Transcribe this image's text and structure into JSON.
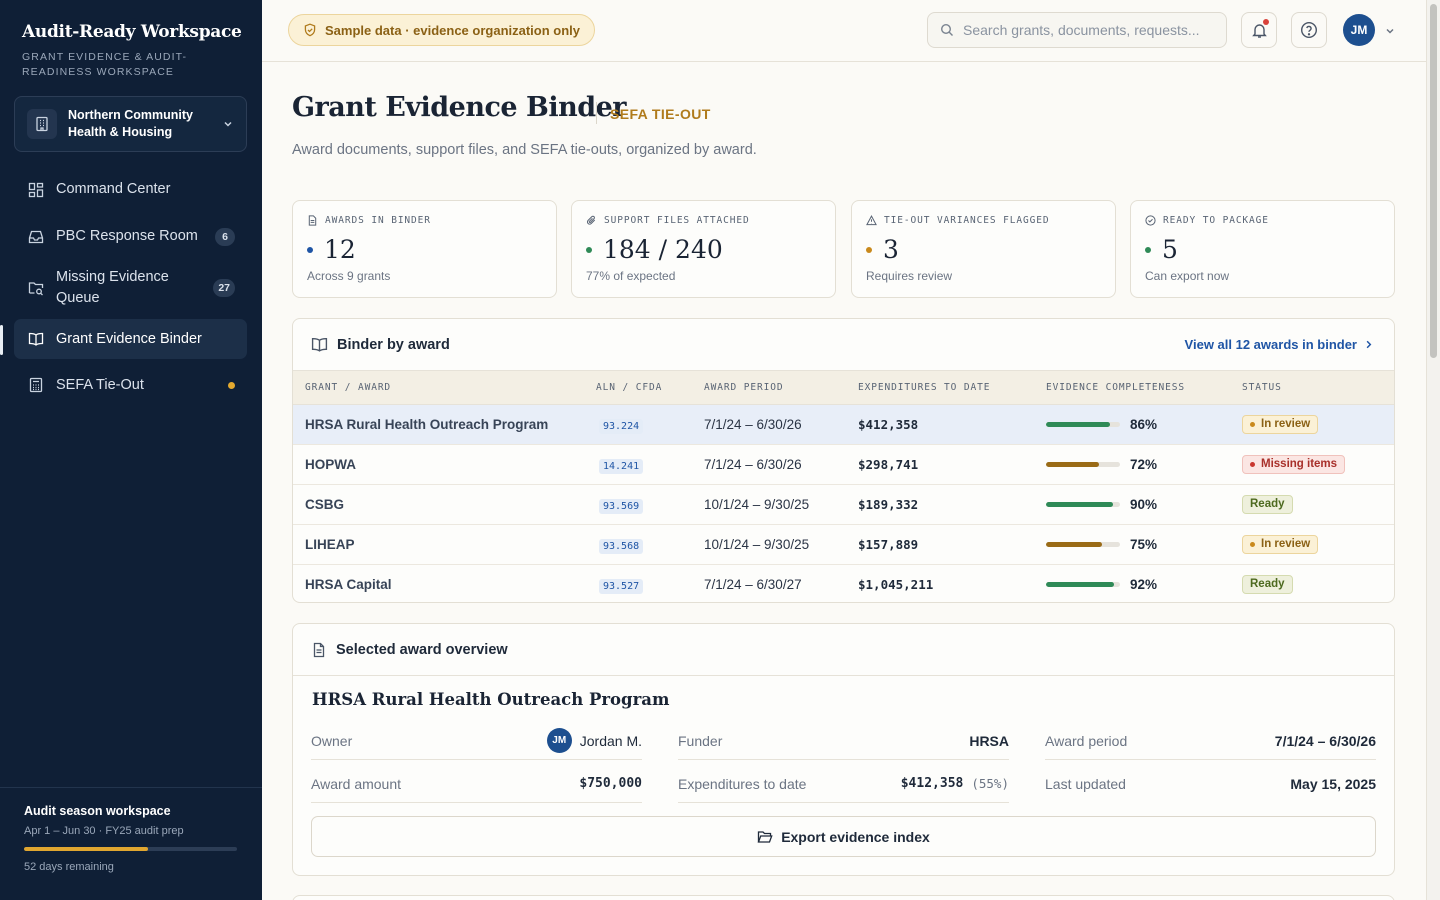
{
  "sidebar": {
    "brand_title": "Audit-Ready Workspace",
    "brand_subtitle": "GRANT EVIDENCE & AUDIT-READINESS WORKSPACE",
    "org_name": "Northern Community Health & Housing",
    "nav": [
      {
        "label": "Command Center",
        "icon": "grid-icon"
      },
      {
        "label": "PBC Response Room",
        "icon": "inbox-icon",
        "badge": "6"
      },
      {
        "label": "Missing Evidence Queue",
        "icon": "folder-search-icon",
        "badge": "27"
      },
      {
        "label": "Grant Evidence Binder",
        "icon": "book-open-icon",
        "active": true
      },
      {
        "label": "SEFA Tie-Out",
        "icon": "calculator-icon",
        "dot_color": "#e3a92f"
      }
    ],
    "season": {
      "title": "Audit season workspace",
      "subtitle": "Apr 1 – Jun 30 · FY25 audit prep",
      "progress": 0.58,
      "days_remaining": "52 days remaining"
    }
  },
  "topbar": {
    "sample_notice": "Sample data · evidence organization only",
    "search_placeholder": "Search grants, documents, requests...",
    "avatar_initials": "JM"
  },
  "page": {
    "title": "Grant Evidence Binder",
    "tag": "SEFA TIE-OUT",
    "description": "Award documents, support files, and SEFA tie-outs, organized by award."
  },
  "kpis": [
    {
      "label": "AWARDS IN BINDER",
      "icon": "file-icon",
      "value": "12",
      "sub": "Across 9 grants",
      "dot_color": "#1f55a5"
    },
    {
      "label": "SUPPORT FILES ATTACHED",
      "icon": "paperclip-icon",
      "value": "184 / 240",
      "sub": "77% of expected",
      "dot_color": "#2f8a57"
    },
    {
      "label": "TIE-OUT VARIANCES FLAGGED",
      "icon": "alert-triangle-icon",
      "value": "3",
      "sub": "Requires review",
      "dot_color": "#c9891c"
    },
    {
      "label": "READY TO PACKAGE",
      "icon": "check-circle-icon",
      "value": "5",
      "sub": "Can export now",
      "dot_color": "#2f8a57"
    }
  ],
  "binder": {
    "title": "Binder by award",
    "view_all": "View all 12 awards in binder",
    "columns": [
      "GRANT / AWARD",
      "ALN / CFDA",
      "AWARD PERIOD",
      "EXPENDITURES TO DATE",
      "EVIDENCE COMPLETENESS",
      "STATUS"
    ],
    "rows": [
      {
        "name": "HRSA Rural Health Outreach Program",
        "aln": "93.224",
        "period": "7/1/24 – 6/30/26",
        "expenditures": "$412,358",
        "completeness": 86,
        "pct": "86%",
        "status": "In review",
        "status_kind": "review",
        "bar_color": "#2f8a57",
        "selected": true
      },
      {
        "name": "HOPWA",
        "aln": "14.241",
        "period": "7/1/24 – 6/30/26",
        "expenditures": "$298,741",
        "completeness": 72,
        "pct": "72%",
        "status": "Missing items",
        "status_kind": "missing",
        "bar_color": "#9a6b16"
      },
      {
        "name": "CSBG",
        "aln": "93.569",
        "period": "10/1/24 – 9/30/25",
        "expenditures": "$189,332",
        "completeness": 90,
        "pct": "90%",
        "status": "Ready",
        "status_kind": "ready",
        "bar_color": "#2f8a57"
      },
      {
        "name": "LIHEAP",
        "aln": "93.568",
        "period": "10/1/24 – 9/30/25",
        "expenditures": "$157,889",
        "completeness": 75,
        "pct": "75%",
        "status": "In review",
        "status_kind": "review",
        "bar_color": "#9a6b16"
      },
      {
        "name": "HRSA Capital",
        "aln": "93.527",
        "period": "7/1/24 – 6/30/27",
        "expenditures": "$1,045,211",
        "completeness": 92,
        "pct": "92%",
        "status": "Ready",
        "status_kind": "ready",
        "bar_color": "#2f8a57"
      }
    ]
  },
  "overview": {
    "title": "Selected award overview",
    "award_name": "HRSA Rural Health Outreach Program",
    "owner_label": "Owner",
    "owner_initials": "JM",
    "owner_name": "Jordan M.",
    "funder_label": "Funder",
    "funder": "HRSA",
    "period_label": "Award period",
    "period": "7/1/24 – 6/30/26",
    "amount_label": "Award amount",
    "amount": "$750,000",
    "exp_label": "Expenditures to date",
    "exp_value": "$412,358",
    "exp_pct": "(55%)",
    "updated_label": "Last updated",
    "updated": "May 15, 2025",
    "export_label": "Export evidence index"
  }
}
